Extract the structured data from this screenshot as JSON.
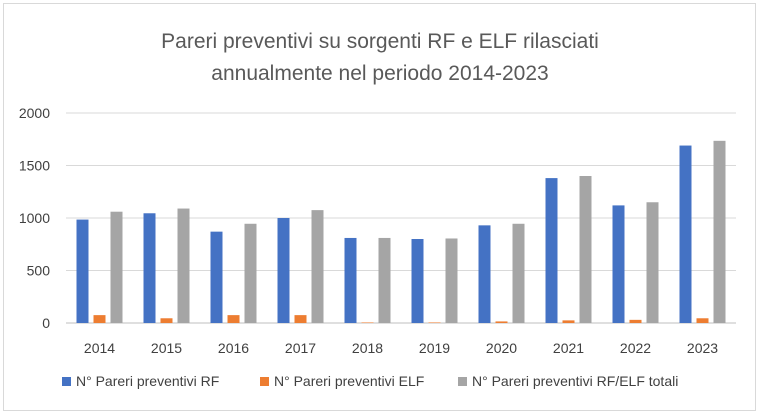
{
  "chart_data": {
    "type": "bar",
    "title_line1": "Pareri preventivi su sorgenti RF e ELF rilasciati",
    "title_line2": "annualmente nel periodo 2014-2023",
    "categories": [
      "2014",
      "2015",
      "2016",
      "2017",
      "2018",
      "2019",
      "2020",
      "2021",
      "2022",
      "2023"
    ],
    "series": [
      {
        "name": "N° Pareri preventivi RF",
        "color": "#4472c4",
        "values": [
          985,
          1045,
          870,
          1000,
          810,
          800,
          930,
          1380,
          1120,
          1690
        ]
      },
      {
        "name": "N° Pareri preventivi ELF",
        "color": "#ed7d31",
        "values": [
          75,
          45,
          75,
          75,
          5,
          5,
          15,
          25,
          30,
          45
        ]
      },
      {
        "name": "N° Pareri preventivi RF/ELF totali",
        "color": "#a5a5a5",
        "values": [
          1060,
          1090,
          945,
          1075,
          810,
          805,
          945,
          1400,
          1150,
          1735
        ]
      }
    ],
    "yticks": [
      0,
      500,
      1000,
      1500,
      2000
    ],
    "ylim": [
      0,
      2000
    ],
    "grid": true,
    "legend": "bottom"
  }
}
